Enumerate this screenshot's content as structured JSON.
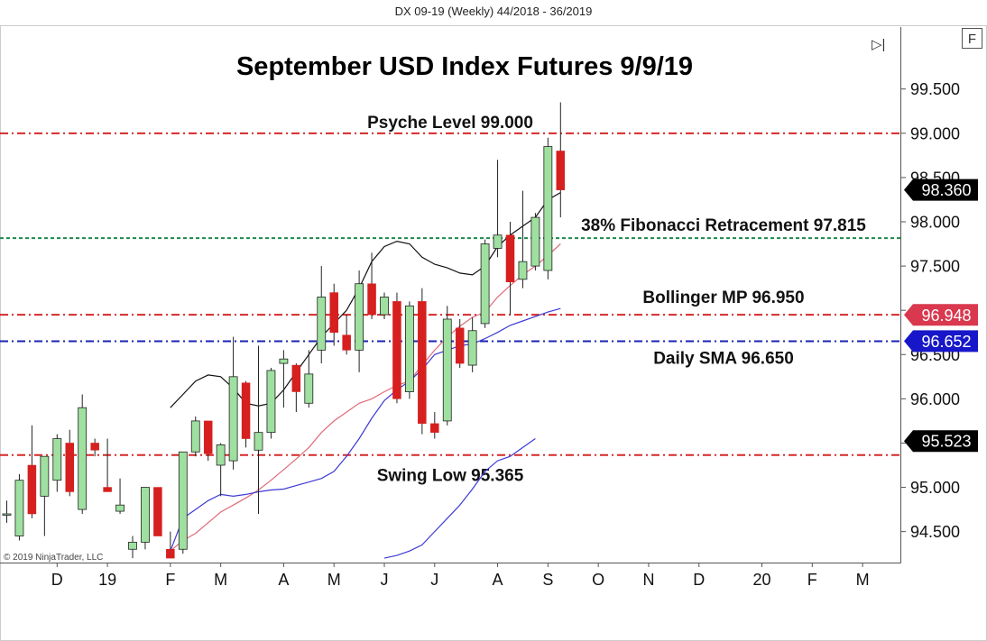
{
  "header": "DX 09-19 (Weekly)  44/2018 - 36/2019",
  "copyright": "© 2019 NinjaTrader, LLC",
  "toolbar": {
    "play_label": "▷|",
    "f_label": "F"
  },
  "chart_data": {
    "type": "candlestick",
    "title": "September USD Index Futures 9/9/19",
    "ylim": [
      94.15,
      100.2
    ],
    "y_ticks": [
      "94.500",
      "95.000",
      "95.500",
      "96.000",
      "96.500",
      "97.000",
      "97.500",
      "98.000",
      "98.500",
      "99.000",
      "99.500"
    ],
    "x_ticks": [
      {
        "label": "D",
        "index": 4
      },
      {
        "label": "19",
        "index": 8
      },
      {
        "label": "F",
        "index": 13
      },
      {
        "label": "M",
        "index": 17
      },
      {
        "label": "A",
        "index": 22
      },
      {
        "label": "M",
        "index": 26
      },
      {
        "label": "J",
        "index": 30
      },
      {
        "label": "J",
        "index": 34
      },
      {
        "label": "A",
        "index": 39
      },
      {
        "label": "S",
        "index": 43
      },
      {
        "label": "O",
        "index": 47
      },
      {
        "label": "N",
        "index": 51
      },
      {
        "label": "D",
        "index": 55
      },
      {
        "label": "20",
        "index": 60
      },
      {
        "label": "F",
        "index": 64
      },
      {
        "label": "M",
        "index": 68
      }
    ],
    "candles": [
      {
        "o": 94.7,
        "h": 94.85,
        "l": 94.6,
        "c": 94.7
      },
      {
        "o": 94.45,
        "h": 95.15,
        "l": 94.4,
        "c": 95.08
      },
      {
        "o": 95.25,
        "h": 95.7,
        "l": 94.65,
        "c": 94.7
      },
      {
        "o": 94.9,
        "h": 95.35,
        "l": 94.45,
        "c": 95.35
      },
      {
        "o": 95.08,
        "h": 95.6,
        "l": 94.95,
        "c": 95.55
      },
      {
        "o": 95.5,
        "h": 95.65,
        "l": 94.9,
        "c": 94.95
      },
      {
        "o": 94.75,
        "h": 96.05,
        "l": 94.7,
        "c": 95.9
      },
      {
        "o": 95.5,
        "h": 95.55,
        "l": 95.35,
        "c": 95.42
      },
      {
        "o": 95.0,
        "h": 95.55,
        "l": 94.95,
        "c": 94.95
      },
      {
        "o": 94.73,
        "h": 95.1,
        "l": 94.7,
        "c": 94.8
      },
      {
        "o": 94.3,
        "h": 94.45,
        "l": 94.2,
        "c": 94.38
      },
      {
        "o": 94.38,
        "h": 95.0,
        "l": 94.3,
        "c": 95.0
      },
      {
        "o": 95.0,
        "h": 95.0,
        "l": 94.45,
        "c": 94.45
      },
      {
        "o": 94.3,
        "h": 94.5,
        "l": 94.2,
        "c": 94.2
      },
      {
        "o": 94.3,
        "h": 95.4,
        "l": 94.25,
        "c": 95.4
      },
      {
        "o": 95.4,
        "h": 95.8,
        "l": 95.35,
        "c": 95.75
      },
      {
        "o": 95.75,
        "h": 95.75,
        "l": 95.3,
        "c": 95.38
      },
      {
        "o": 95.25,
        "h": 95.5,
        "l": 94.9,
        "c": 95.48
      },
      {
        "o": 95.3,
        "h": 96.7,
        "l": 95.2,
        "c": 96.25
      },
      {
        "o": 96.18,
        "h": 96.2,
        "l": 95.45,
        "c": 95.55
      },
      {
        "o": 95.42,
        "h": 96.6,
        "l": 94.7,
        "c": 95.62
      },
      {
        "o": 95.62,
        "h": 96.35,
        "l": 95.55,
        "c": 96.32
      },
      {
        "o": 96.4,
        "h": 96.55,
        "l": 95.9,
        "c": 96.45
      },
      {
        "o": 96.38,
        "h": 96.4,
        "l": 95.85,
        "c": 96.08
      },
      {
        "o": 95.95,
        "h": 96.55,
        "l": 95.9,
        "c": 96.28
      },
      {
        "o": 96.55,
        "h": 97.5,
        "l": 96.4,
        "c": 97.15
      },
      {
        "o": 97.2,
        "h": 97.3,
        "l": 96.6,
        "c": 96.75
      },
      {
        "o": 96.72,
        "h": 96.95,
        "l": 96.5,
        "c": 96.55
      },
      {
        "o": 96.55,
        "h": 97.45,
        "l": 96.3,
        "c": 97.3
      },
      {
        "o": 97.3,
        "h": 97.65,
        "l": 96.9,
        "c": 96.95
      },
      {
        "o": 96.95,
        "h": 97.2,
        "l": 96.9,
        "c": 97.15
      },
      {
        "o": 97.1,
        "h": 97.2,
        "l": 95.95,
        "c": 96.0
      },
      {
        "o": 96.08,
        "h": 97.1,
        "l": 96.0,
        "c": 97.05
      },
      {
        "o": 97.1,
        "h": 97.25,
        "l": 95.6,
        "c": 95.72
      },
      {
        "o": 95.72,
        "h": 95.85,
        "l": 95.55,
        "c": 95.62
      },
      {
        "o": 95.75,
        "h": 97.05,
        "l": 95.7,
        "c": 96.9
      },
      {
        "o": 96.8,
        "h": 96.9,
        "l": 96.35,
        "c": 96.4
      },
      {
        "o": 96.38,
        "h": 96.92,
        "l": 96.3,
        "c": 96.77
      },
      {
        "o": 96.85,
        "h": 97.8,
        "l": 96.8,
        "c": 97.75
      },
      {
        "o": 97.7,
        "h": 98.7,
        "l": 97.6,
        "c": 97.85
      },
      {
        "o": 97.85,
        "h": 98.0,
        "l": 96.95,
        "c": 97.32
      },
      {
        "o": 97.35,
        "h": 98.35,
        "l": 97.25,
        "c": 97.55
      },
      {
        "o": 97.5,
        "h": 98.1,
        "l": 97.45,
        "c": 98.05
      },
      {
        "o": 97.45,
        "h": 98.95,
        "l": 97.35,
        "c": 98.85
      },
      {
        "o": 98.8,
        "h": 99.35,
        "l": 98.05,
        "c": 98.36
      }
    ],
    "series": [
      {
        "color": "#111111",
        "start": 13,
        "values": [
          95.9,
          96.05,
          96.2,
          96.27,
          96.25,
          96.12,
          95.95,
          95.92,
          95.95,
          96.1,
          96.3,
          96.5,
          96.7,
          96.85,
          97.0,
          97.25,
          97.55,
          97.72,
          97.78,
          97.75,
          97.6,
          97.52,
          97.48,
          97.42,
          97.4,
          97.5,
          97.72,
          97.85,
          97.95,
          98.05,
          98.25,
          98.33
        ]
      },
      {
        "color": "#e06a7a",
        "start": 13,
        "values": [
          94.28,
          94.4,
          94.48,
          94.6,
          94.72,
          94.8,
          94.88,
          94.97,
          95.08,
          95.2,
          95.32,
          95.45,
          95.62,
          95.75,
          95.85,
          95.95,
          96.0,
          96.08,
          96.15,
          96.2,
          96.38,
          96.55,
          96.7,
          96.82,
          96.92,
          96.98,
          97.15,
          97.28,
          97.4,
          97.5,
          97.62,
          97.75
        ]
      },
      {
        "color": "#3d3ad4",
        "start": 13,
        "values": [
          94.28,
          94.65,
          94.75,
          94.85,
          94.92,
          94.9,
          94.92,
          94.95,
          94.97,
          94.98,
          95.02,
          95.06,
          95.1,
          95.18,
          95.35,
          95.55,
          95.78,
          95.98,
          96.1,
          96.2,
          96.33,
          96.5,
          96.55,
          96.6,
          96.62,
          96.68,
          96.75,
          96.83,
          96.88,
          96.93,
          96.98,
          97.02
        ]
      },
      {
        "color": "#3d3ad4",
        "start": 30,
        "values": [
          94.2,
          94.23,
          94.28,
          94.35,
          94.5,
          94.65,
          94.8,
          94.98,
          95.18,
          95.3,
          95.35,
          95.45,
          95.55
        ]
      }
    ],
    "levels": [
      {
        "value": 99.0,
        "color": "#d62828",
        "dash": "9,4,2,4",
        "label": "Psyche Level 99.000"
      },
      {
        "value": 97.815,
        "color": "#1f8a4c",
        "dash": "4,3",
        "label": "38% Fibonacci Retracement 97.815"
      },
      {
        "value": 96.95,
        "color": "#d62828",
        "dash": "9,4,2,4",
        "label": "Bollinger MP 96.950"
      },
      {
        "value": 96.65,
        "color": "#1b23b3",
        "dash": "9,4,2,4",
        "label": "Daily SMA 96.650"
      },
      {
        "value": 95.365,
        "color": "#d62828",
        "dash": "9,4,2,4",
        "label": "Swing Low 95.365"
      }
    ],
    "price_flags": [
      {
        "value": 98.36,
        "text": "98.360",
        "color": "#000000"
      },
      {
        "value": 96.948,
        "text": "96.948",
        "color": "#d9384e"
      },
      {
        "value": 96.652,
        "text": "96.652",
        "color": "#1717c9"
      },
      {
        "value": 95.523,
        "text": "95.523",
        "color": "#000000"
      }
    ],
    "colors": {
      "up": "#9fe0a0",
      "down": "#d61f1f",
      "outline": "#222222"
    }
  }
}
